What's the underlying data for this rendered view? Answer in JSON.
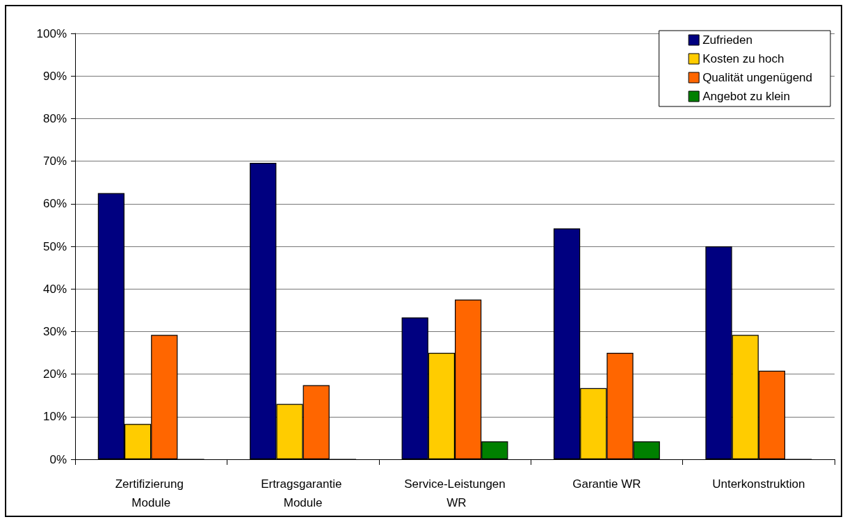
{
  "chart_data": {
    "type": "bar",
    "categories": [
      "Zertifizierung Module",
      "Ertragsgarantie Module",
      "Service-Leistungen WR",
      "Garantie WR",
      "Unterkonstruktion"
    ],
    "series": [
      {
        "name": "Zufrieden",
        "color": "#000080",
        "values": [
          62.5,
          69.6,
          33.3,
          54.2,
          50.0
        ]
      },
      {
        "name": "Kosten zu hoch",
        "color": "#ffcc00",
        "values": [
          8.3,
          13.0,
          25.0,
          16.7,
          29.2
        ]
      },
      {
        "name": "Qualität ungenügend",
        "color": "#ff6600",
        "values": [
          29.2,
          17.4,
          37.5,
          25.0,
          20.8
        ]
      },
      {
        "name": "Angebot zu klein",
        "color": "#008000",
        "values": [
          0,
          0,
          4.2,
          4.2,
          0
        ]
      }
    ],
    "ylim": [
      0,
      100
    ],
    "yticks": [
      {
        "value": 0,
        "label": "0%"
      },
      {
        "value": 10,
        "label": "10%"
      },
      {
        "value": 20,
        "label": "20%"
      },
      {
        "value": 30,
        "label": "30%"
      },
      {
        "value": 40,
        "label": "40%"
      },
      {
        "value": 50,
        "label": "50%"
      },
      {
        "value": 60,
        "label": "60%"
      },
      {
        "value": 70,
        "label": "70%"
      },
      {
        "value": 80,
        "label": "80%"
      },
      {
        "value": 90,
        "label": "90%"
      },
      {
        "value": 100,
        "label": "100%"
      }
    ],
    "grid": "y",
    "legend": "top right"
  }
}
